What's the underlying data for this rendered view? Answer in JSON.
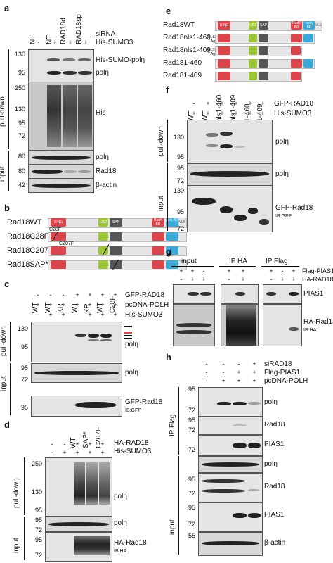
{
  "panels": {
    "a": {
      "letter": "a",
      "cols": [
        "NT",
        "NT",
        "RAD18d",
        "RAD18sp"
      ],
      "sirna_label": "siRNA",
      "sumo_label": "His-SUMO3",
      "sumo_signs": [
        "-",
        "+",
        "+",
        "+"
      ],
      "sirna_signs": [],
      "labels": [
        "His-SUMO-polη",
        "polη",
        "His",
        "polη",
        "Rad18",
        "β-actin"
      ],
      "group_pulldown": "pull-down",
      "group_input": "input",
      "mw_pd1": [
        "130",
        "95"
      ],
      "mw_pd2": [
        "250",
        "130",
        "95",
        "72"
      ],
      "mw_in": [
        "80",
        "80",
        "42"
      ]
    },
    "b": {
      "letter": "b",
      "rows": [
        "Rad18WT",
        "Rad18C28F",
        "Rad18C207F",
        "Rad18SAP*"
      ],
      "mut_labels": [
        "C28F",
        "C207F"
      ],
      "domains": [
        "RING",
        "UBZ",
        "SAP",
        "Rad6 BD",
        "polη BD",
        "NLS"
      ]
    },
    "c": {
      "letter": "c",
      "cols": [
        "WT",
        "WT",
        "KR",
        "WT",
        "KR",
        "WT",
        "C28F"
      ],
      "rows": [
        {
          "label": "GFP-RAD18",
          "signs": [
            "-",
            "-",
            "-",
            "+",
            "+",
            "+",
            "+"
          ]
        },
        {
          "label": "pcDNA-POLH",
          "signs": [
            "+",
            "+",
            "+",
            "+",
            "+",
            "+",
            "+"
          ]
        },
        {
          "label": "His-SUMO3",
          "signs": [
            "-",
            "+",
            "+",
            "-",
            "+",
            "+",
            "+"
          ]
        }
      ],
      "labels": [
        "polη",
        "polη",
        "GFP-Rad18",
        "IB:GFP"
      ],
      "group_pulldown": "pull-down",
      "group_input": "input",
      "mw_pd": [
        "130",
        "95"
      ],
      "mw_in": [
        "95",
        "72",
        "95"
      ]
    },
    "d": {
      "letter": "d",
      "cols": [
        "WT",
        "SAP*",
        "C207F"
      ],
      "rows": [
        {
          "label": "HA-RAD18",
          "signs": [
            "-",
            "-",
            "+",
            "+",
            "+"
          ]
        },
        {
          "label": "His-SUMO3",
          "signs": [
            "-",
            "+",
            "+",
            "+",
            "+"
          ]
        }
      ],
      "labels": [
        "polη",
        "polη",
        "HA-Rad18",
        "IB:HA"
      ],
      "group_pulldown": "pull-down",
      "group_input": "input",
      "mw_pd": [
        "250",
        "130",
        "95"
      ],
      "mw_in": [
        "95",
        "72",
        "95",
        "72"
      ]
    },
    "e": {
      "letter": "e",
      "rows": [
        "Rad18WT",
        "Rad18nls1-460",
        "Rad18nls1-409",
        "Rad181-460",
        "Rad181-409"
      ],
      "nls_tag": "NLS T.Ag",
      "domains": [
        "RING",
        "UBZ",
        "SAP",
        "Rad6 BD",
        "polη BD",
        "NLS"
      ]
    },
    "f": {
      "letter": "f",
      "cols": [
        "WT",
        "WT",
        "nls1-460",
        "nls1-409",
        "1-460",
        "1-409"
      ],
      "rows": [
        {
          "label": "GFP-RAD18",
          "signs": [
            "-",
            "+",
            "+",
            "+",
            "+",
            "+"
          ]
        },
        {
          "label": "His-SUMO3",
          "signs": [
            "+",
            "+",
            "+",
            "+",
            "+",
            "+"
          ]
        }
      ],
      "labels": [
        "polη",
        "polη",
        "GFP-Rad18",
        "IB:GFP"
      ],
      "group_pulldown": "pull-down",
      "group_input": "input",
      "mw_pd": [
        "130",
        "95"
      ],
      "mw_in": [
        "95",
        "72",
        "130",
        "95",
        "72"
      ]
    },
    "g": {
      "letter": "g",
      "groups": [
        "input",
        "IP HA",
        "IP Flag"
      ],
      "rows": [
        {
          "label": "Flag-PIAS1",
          "signs": [
            "+",
            "+",
            "-",
            "+",
            "+",
            "+",
            "-",
            "+"
          ]
        },
        {
          "label": "HA-RAD18",
          "signs": [
            "-",
            "+",
            "+",
            "-",
            "+",
            "-",
            "+",
            "+"
          ]
        }
      ],
      "labels": [
        "PIAS1",
        "HA-Rad18",
        "IB:HA"
      ]
    },
    "h": {
      "letter": "h",
      "rows": [
        {
          "label": "siRAD18",
          "signs": [
            "-",
            "-",
            "-",
            "+"
          ]
        },
        {
          "label": "Flag-PIAS1",
          "signs": [
            "-",
            "-",
            "+",
            "+"
          ]
        },
        {
          "label": "pcDNA-POLH",
          "signs": [
            "-",
            "+",
            "+",
            "+"
          ]
        }
      ],
      "labels": [
        "polη",
        "Rad18",
        "PIAS1",
        "polη",
        "Rad18",
        "PIAS1",
        "β-actin"
      ],
      "group_ip": "IP Flag",
      "group_input": "input",
      "mw": [
        "95",
        "72",
        "95",
        "72",
        "72",
        "95",
        "72",
        "95",
        "72",
        "55"
      ]
    }
  }
}
